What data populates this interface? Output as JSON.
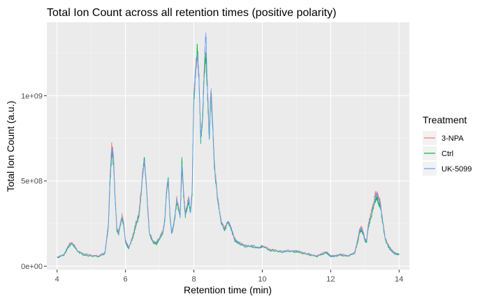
{
  "chart_data": {
    "type": "line",
    "title": "Total Ion Count across all retention times (positive polarity)",
    "xlabel": "Retention time (min)",
    "ylabel": "Total Ion Count (a.u.)",
    "xlim": [
      3.7,
      14.3
    ],
    "ylim": [
      -20000000,
      1430000000
    ],
    "x_ticks": [
      4,
      6,
      8,
      10,
      12,
      14
    ],
    "x_tick_labels": [
      "4",
      "6",
      "8",
      "10",
      "12",
      "14"
    ],
    "y_ticks": [
      0,
      500000000,
      1000000000
    ],
    "y_tick_labels": [
      "0e+00",
      "5e+08",
      "1e+09"
    ],
    "grid": true,
    "background": "#ebebeb",
    "legend": {
      "title": "Treatment",
      "position": "right"
    },
    "series": [
      {
        "name": "3-NPA",
        "color": "#F8766D",
        "x": [
          4.0,
          4.2,
          4.35,
          4.45,
          4.6,
          4.8,
          5.0,
          5.2,
          5.4,
          5.5,
          5.55,
          5.6,
          5.65,
          5.7,
          5.75,
          5.8,
          5.9,
          5.95,
          6.0,
          6.05,
          6.1,
          6.2,
          6.3,
          6.4,
          6.5,
          6.55,
          6.6,
          6.65,
          6.7,
          6.8,
          6.9,
          7.0,
          7.1,
          7.15,
          7.2,
          7.25,
          7.3,
          7.35,
          7.4,
          7.45,
          7.5,
          7.6,
          7.65,
          7.7,
          7.75,
          7.8,
          7.85,
          7.9,
          7.95,
          8.0,
          8.05,
          8.1,
          8.15,
          8.2,
          8.25,
          8.3,
          8.35,
          8.4,
          8.45,
          8.5,
          8.55,
          8.6,
          8.7,
          8.8,
          8.9,
          9.0,
          9.1,
          9.2,
          9.3,
          9.5,
          9.7,
          9.9,
          10.0,
          10.2,
          10.5,
          10.8,
          11.0,
          11.2,
          11.4,
          11.6,
          11.8,
          11.9,
          12.0,
          12.1,
          12.3,
          12.5,
          12.7,
          12.8,
          12.85,
          12.9,
          12.95,
          13.0,
          13.05,
          13.1,
          13.2,
          13.3,
          13.35,
          13.4,
          13.45,
          13.5,
          13.6,
          13.7,
          13.8,
          13.9,
          14.0
        ],
        "values": [
          50000000,
          70000000,
          130000000,
          140000000,
          90000000,
          70000000,
          65000000,
          60000000,
          80000000,
          250000000,
          550000000,
          720000000,
          650000000,
          400000000,
          220000000,
          200000000,
          300000000,
          250000000,
          150000000,
          130000000,
          110000000,
          170000000,
          250000000,
          320000000,
          550000000,
          620000000,
          520000000,
          350000000,
          200000000,
          150000000,
          140000000,
          170000000,
          210000000,
          280000000,
          450000000,
          500000000,
          300000000,
          200000000,
          240000000,
          300000000,
          400000000,
          300000000,
          560000000,
          440000000,
          300000000,
          360000000,
          400000000,
          320000000,
          450000000,
          1020000000,
          1150000000,
          1250000000,
          1120000000,
          760000000,
          860000000,
          1150000000,
          1220000000,
          1050000000,
          760000000,
          1050000000,
          850000000,
          600000000,
          400000000,
          260000000,
          220000000,
          270000000,
          220000000,
          160000000,
          140000000,
          120000000,
          120000000,
          110000000,
          120000000,
          100000000,
          90000000,
          90000000,
          90000000,
          80000000,
          70000000,
          60000000,
          80000000,
          80000000,
          60000000,
          60000000,
          70000000,
          60000000,
          80000000,
          170000000,
          220000000,
          230000000,
          200000000,
          160000000,
          150000000,
          250000000,
          330000000,
          420000000,
          440000000,
          400000000,
          380000000,
          300000000,
          160000000,
          120000000,
          90000000,
          75000000,
          70000000
        ]
      },
      {
        "name": "Ctrl",
        "color": "#00BA38",
        "x": [
          4.0,
          4.2,
          4.35,
          4.45,
          4.6,
          4.8,
          5.0,
          5.2,
          5.4,
          5.5,
          5.55,
          5.6,
          5.65,
          5.7,
          5.75,
          5.8,
          5.9,
          5.95,
          6.0,
          6.05,
          6.1,
          6.2,
          6.3,
          6.4,
          6.5,
          6.55,
          6.6,
          6.65,
          6.7,
          6.8,
          6.9,
          7.0,
          7.1,
          7.15,
          7.2,
          7.25,
          7.3,
          7.35,
          7.4,
          7.45,
          7.5,
          7.6,
          7.65,
          7.7,
          7.75,
          7.8,
          7.85,
          7.9,
          7.95,
          8.0,
          8.05,
          8.1,
          8.15,
          8.2,
          8.25,
          8.3,
          8.35,
          8.4,
          8.45,
          8.5,
          8.55,
          8.6,
          8.7,
          8.8,
          8.9,
          9.0,
          9.1,
          9.2,
          9.3,
          9.5,
          9.7,
          9.9,
          10.0,
          10.2,
          10.5,
          10.8,
          11.0,
          11.2,
          11.4,
          11.6,
          11.8,
          11.9,
          12.0,
          12.1,
          12.3,
          12.5,
          12.7,
          12.8,
          12.85,
          12.9,
          12.95,
          13.0,
          13.05,
          13.1,
          13.2,
          13.3,
          13.35,
          13.4,
          13.45,
          13.5,
          13.6,
          13.7,
          13.8,
          13.9,
          14.0
        ],
        "values": [
          50000000,
          65000000,
          120000000,
          130000000,
          85000000,
          65000000,
          60000000,
          55000000,
          75000000,
          230000000,
          500000000,
          670000000,
          600000000,
          380000000,
          210000000,
          190000000,
          280000000,
          240000000,
          140000000,
          120000000,
          105000000,
          160000000,
          230000000,
          300000000,
          520000000,
          640000000,
          500000000,
          330000000,
          190000000,
          140000000,
          130000000,
          160000000,
          200000000,
          270000000,
          430000000,
          530000000,
          290000000,
          190000000,
          230000000,
          290000000,
          380000000,
          290000000,
          640000000,
          420000000,
          290000000,
          340000000,
          380000000,
          310000000,
          430000000,
          980000000,
          1120000000,
          1280000000,
          1080000000,
          740000000,
          840000000,
          1100000000,
          1250000000,
          1000000000,
          740000000,
          1020000000,
          820000000,
          580000000,
          380000000,
          250000000,
          210000000,
          260000000,
          210000000,
          150000000,
          135000000,
          115000000,
          115000000,
          105000000,
          115000000,
          95000000,
          85000000,
          85000000,
          85000000,
          75000000,
          65000000,
          58000000,
          75000000,
          75000000,
          58000000,
          58000000,
          65000000,
          58000000,
          75000000,
          150000000,
          200000000,
          210000000,
          190000000,
          150000000,
          140000000,
          230000000,
          300000000,
          380000000,
          400000000,
          370000000,
          350000000,
          280000000,
          150000000,
          110000000,
          85000000,
          72000000,
          68000000
        ]
      },
      {
        "name": "UK-5099",
        "color": "#619CFF",
        "x": [
          4.0,
          4.2,
          4.35,
          4.45,
          4.6,
          4.8,
          5.0,
          5.2,
          5.4,
          5.5,
          5.55,
          5.6,
          5.65,
          5.7,
          5.75,
          5.8,
          5.9,
          5.95,
          6.0,
          6.05,
          6.1,
          6.2,
          6.3,
          6.4,
          6.5,
          6.55,
          6.6,
          6.65,
          6.7,
          6.8,
          6.9,
          7.0,
          7.1,
          7.15,
          7.2,
          7.25,
          7.3,
          7.35,
          7.4,
          7.45,
          7.5,
          7.6,
          7.65,
          7.7,
          7.75,
          7.8,
          7.85,
          7.9,
          7.95,
          8.0,
          8.05,
          8.1,
          8.15,
          8.2,
          8.25,
          8.3,
          8.35,
          8.4,
          8.45,
          8.5,
          8.55,
          8.6,
          8.7,
          8.8,
          8.9,
          9.0,
          9.1,
          9.2,
          9.3,
          9.5,
          9.7,
          9.9,
          10.0,
          10.2,
          10.5,
          10.8,
          11.0,
          11.2,
          11.4,
          11.6,
          11.8,
          11.9,
          12.0,
          12.1,
          12.3,
          12.5,
          12.7,
          12.8,
          12.85,
          12.9,
          12.95,
          13.0,
          13.05,
          13.1,
          13.2,
          13.3,
          13.35,
          13.4,
          13.45,
          13.5,
          13.6,
          13.7,
          13.8,
          13.9,
          14.0
        ],
        "values": [
          50000000,
          68000000,
          125000000,
          135000000,
          88000000,
          68000000,
          62000000,
          58000000,
          78000000,
          240000000,
          520000000,
          690000000,
          620000000,
          390000000,
          215000000,
          195000000,
          290000000,
          245000000,
          145000000,
          125000000,
          108000000,
          165000000,
          240000000,
          310000000,
          530000000,
          610000000,
          510000000,
          340000000,
          195000000,
          145000000,
          135000000,
          165000000,
          205000000,
          275000000,
          440000000,
          510000000,
          295000000,
          195000000,
          235000000,
          295000000,
          390000000,
          295000000,
          600000000,
          430000000,
          295000000,
          350000000,
          390000000,
          315000000,
          440000000,
          1000000000,
          1130000000,
          1230000000,
          1100000000,
          750000000,
          850000000,
          1120000000,
          1380000000,
          1030000000,
          750000000,
          1030000000,
          830000000,
          590000000,
          390000000,
          255000000,
          215000000,
          265000000,
          215000000,
          155000000,
          138000000,
          118000000,
          118000000,
          108000000,
          118000000,
          98000000,
          88000000,
          88000000,
          88000000,
          78000000,
          68000000,
          59000000,
          78000000,
          78000000,
          59000000,
          59000000,
          68000000,
          59000000,
          78000000,
          160000000,
          210000000,
          220000000,
          195000000,
          155000000,
          145000000,
          240000000,
          315000000,
          400000000,
          420000000,
          385000000,
          365000000,
          290000000,
          155000000,
          115000000,
          88000000,
          74000000,
          69000000
        ]
      }
    ]
  }
}
